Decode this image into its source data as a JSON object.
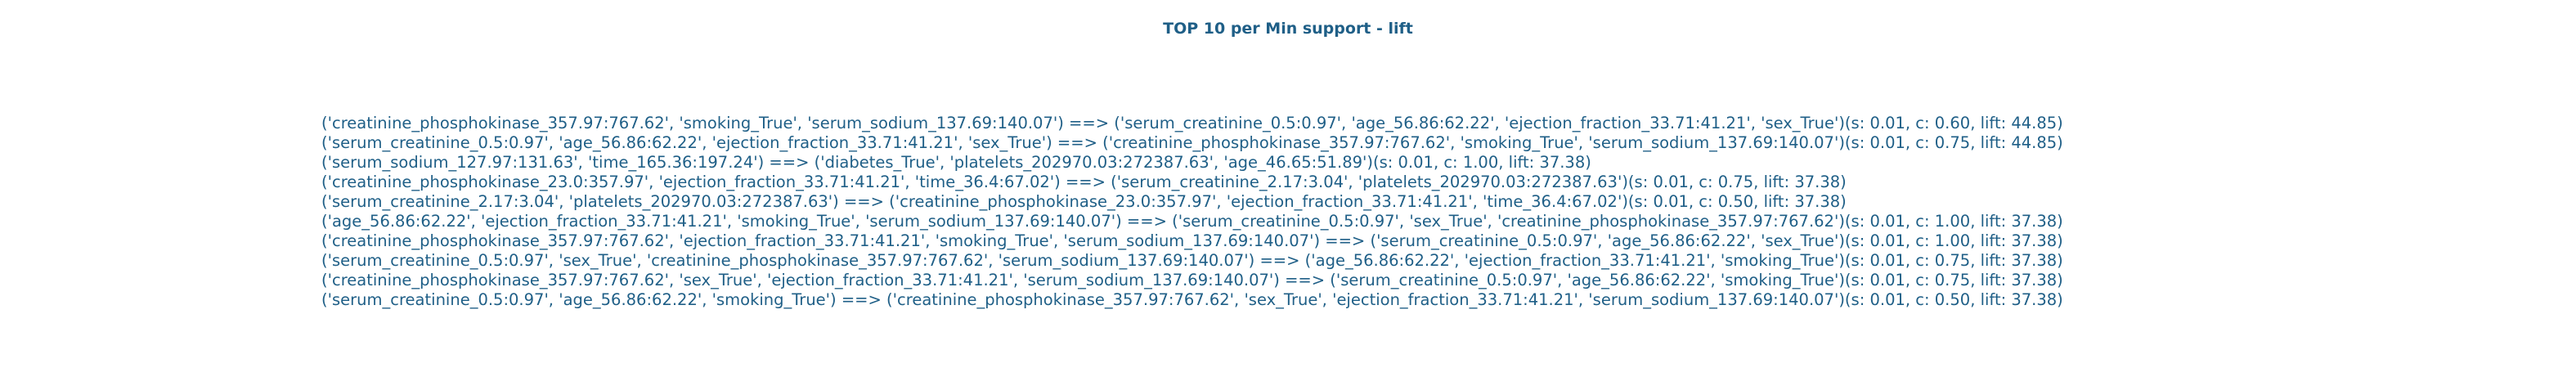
{
  "chart_data": {
    "type": "table",
    "title": "TOP 10 per Min support - lift",
    "rows": [
      "('creatinine_phosphokinase_357.97:767.62', 'smoking_True', 'serum_sodium_137.69:140.07') ==> ('serum_creatinine_0.5:0.97', 'age_56.86:62.22', 'ejection_fraction_33.71:41.21', 'sex_True')(s: 0.01, c: 0.60, lift: 44.85)",
      "('serum_creatinine_0.5:0.97', 'age_56.86:62.22', 'ejection_fraction_33.71:41.21', 'sex_True') ==> ('creatinine_phosphokinase_357.97:767.62', 'smoking_True', 'serum_sodium_137.69:140.07')(s: 0.01, c: 0.75, lift: 44.85)",
      "('serum_sodium_127.97:131.63', 'time_165.36:197.24') ==> ('diabetes_True', 'platelets_202970.03:272387.63', 'age_46.65:51.89')(s: 0.01, c: 1.00, lift: 37.38)",
      "('creatinine_phosphokinase_23.0:357.97', 'ejection_fraction_33.71:41.21', 'time_36.4:67.02') ==> ('serum_creatinine_2.17:3.04', 'platelets_202970.03:272387.63')(s: 0.01, c: 0.75, lift: 37.38)",
      "('serum_creatinine_2.17:3.04', 'platelets_202970.03:272387.63') ==> ('creatinine_phosphokinase_23.0:357.97', 'ejection_fraction_33.71:41.21', 'time_36.4:67.02')(s: 0.01, c: 0.50, lift: 37.38)",
      "('age_56.86:62.22', 'ejection_fraction_33.71:41.21', 'smoking_True', 'serum_sodium_137.69:140.07') ==> ('serum_creatinine_0.5:0.97', 'sex_True', 'creatinine_phosphokinase_357.97:767.62')(s: 0.01, c: 1.00, lift: 37.38)",
      "('creatinine_phosphokinase_357.97:767.62', 'ejection_fraction_33.71:41.21', 'smoking_True', 'serum_sodium_137.69:140.07') ==> ('serum_creatinine_0.5:0.97', 'age_56.86:62.22', 'sex_True')(s: 0.01, c: 1.00, lift: 37.38)",
      "('serum_creatinine_0.5:0.97', 'sex_True', 'creatinine_phosphokinase_357.97:767.62', 'serum_sodium_137.69:140.07') ==> ('age_56.86:62.22', 'ejection_fraction_33.71:41.21', 'smoking_True')(s: 0.01, c: 0.75, lift: 37.38)",
      "('creatinine_phosphokinase_357.97:767.62', 'sex_True', 'ejection_fraction_33.71:41.21', 'serum_sodium_137.69:140.07') ==> ('serum_creatinine_0.5:0.97', 'age_56.86:62.22', 'smoking_True')(s: 0.01, c: 0.75, lift: 37.38)",
      "('serum_creatinine_0.5:0.97', 'age_56.86:62.22', 'smoking_True') ==> ('creatinine_phosphokinase_357.97:767.62', 'sex_True', 'ejection_fraction_33.71:41.21', 'serum_sodium_137.69:140.07')(s: 0.01, c: 0.50, lift: 37.38)"
    ]
  },
  "colors": {
    "text": "#1f5f87",
    "background": "#ffffff"
  }
}
